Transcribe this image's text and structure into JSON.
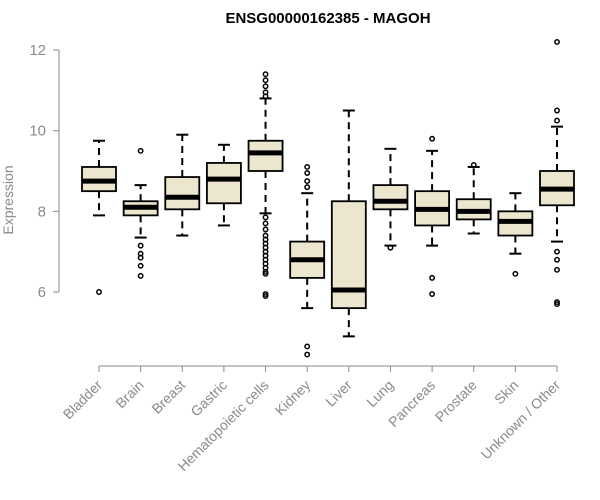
{
  "colors": {
    "box_fill": "#ede6cf",
    "box_stroke": "#000000",
    "axis": "#8a8a8a",
    "text_gray": "#8a8a8a",
    "title": "#000000"
  },
  "chart_data": {
    "type": "boxplot",
    "title": "ENSG00000162385 - MAGOH",
    "xlabel": "",
    "ylabel": "Expression",
    "ylim": [
      4.2,
      12.4
    ],
    "yticks": [
      6,
      8,
      10,
      12
    ],
    "grid": false,
    "legend": "none",
    "categories": [
      "Bladder",
      "Brain",
      "Breast",
      "Gastric",
      "Hematopoietic cells",
      "Kidney",
      "Liver",
      "Lung",
      "Pancreas",
      "Prostate",
      "Skin",
      "Unknown / Other"
    ],
    "boxes": [
      {
        "whisker_low": 7.9,
        "q1": 8.5,
        "median": 8.75,
        "q3": 9.1,
        "whisker_high": 9.75,
        "outliers": [
          6.0
        ]
      },
      {
        "whisker_low": 7.35,
        "q1": 7.9,
        "median": 8.1,
        "q3": 8.25,
        "whisker_high": 8.65,
        "outliers": [
          9.5,
          7.15,
          6.95,
          6.85,
          6.65,
          6.4
        ]
      },
      {
        "whisker_low": 7.4,
        "q1": 8.05,
        "median": 8.35,
        "q3": 8.85,
        "whisker_high": 9.9,
        "outliers": []
      },
      {
        "whisker_low": 7.65,
        "q1": 8.2,
        "median": 8.8,
        "q3": 9.2,
        "whisker_high": 9.65,
        "outliers": []
      },
      {
        "whisker_low": 7.95,
        "q1": 9.0,
        "median": 9.45,
        "q3": 9.75,
        "whisker_high": 10.8,
        "outliers": [
          11.4,
          11.25,
          11.1,
          10.95,
          10.85,
          7.85,
          7.7,
          7.55,
          7.4,
          7.3,
          7.2,
          7.1,
          7.0,
          6.9,
          6.8,
          6.7,
          6.6,
          6.5,
          6.45,
          5.95,
          5.9
        ]
      },
      {
        "whisker_low": 5.6,
        "q1": 6.35,
        "median": 6.8,
        "q3": 7.25,
        "whisker_high": 8.45,
        "outliers": [
          9.1,
          8.95,
          8.75,
          8.6,
          4.65,
          4.45
        ]
      },
      {
        "whisker_low": 4.9,
        "q1": 5.6,
        "median": 6.05,
        "q3": 8.25,
        "whisker_high": 10.5,
        "outliers": []
      },
      {
        "whisker_low": 7.15,
        "q1": 8.05,
        "median": 8.25,
        "q3": 8.65,
        "whisker_high": 9.55,
        "outliers": [
          7.1
        ]
      },
      {
        "whisker_low": 7.15,
        "q1": 7.65,
        "median": 8.05,
        "q3": 8.5,
        "whisker_high": 9.5,
        "outliers": [
          9.8,
          6.35,
          5.95
        ]
      },
      {
        "whisker_low": 7.45,
        "q1": 7.8,
        "median": 8.0,
        "q3": 8.3,
        "whisker_high": 9.1,
        "outliers": [
          9.15
        ]
      },
      {
        "whisker_low": 6.95,
        "q1": 7.4,
        "median": 7.75,
        "q3": 8.0,
        "whisker_high": 8.45,
        "outliers": [
          6.45
        ]
      },
      {
        "whisker_low": 7.25,
        "q1": 8.15,
        "median": 8.55,
        "q3": 9.0,
        "whisker_high": 10.1,
        "outliers": [
          12.2,
          10.5,
          10.25,
          7.0,
          6.8,
          6.55,
          5.75,
          5.7
        ]
      }
    ]
  }
}
